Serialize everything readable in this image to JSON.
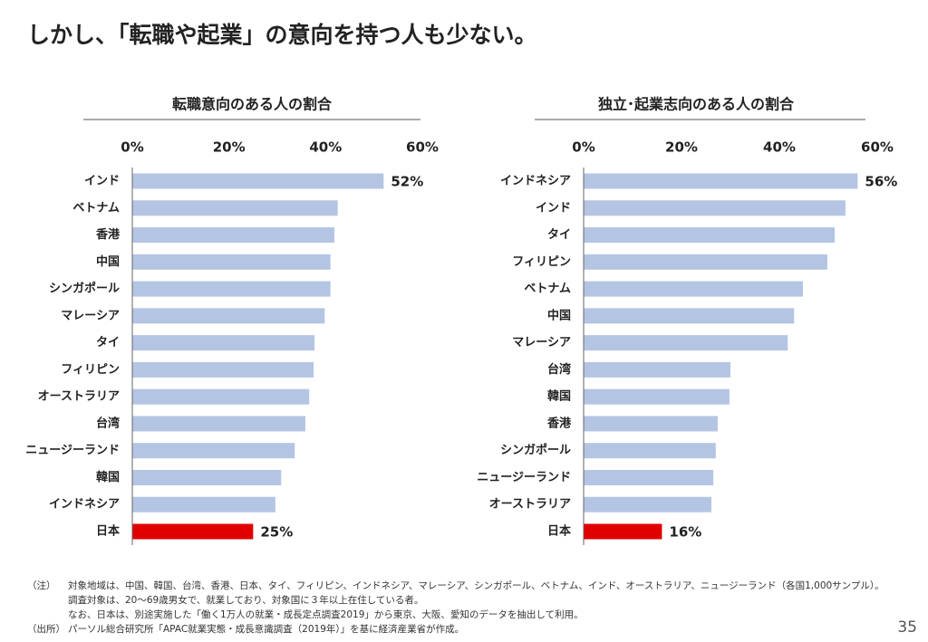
{
  "slide_title": "しかし、「転職や起業」の意向を持つ人も少ない。",
  "chart_data": [
    {
      "type": "bar",
      "orientation": "horizontal",
      "title": "転職意向のある人の割合",
      "categories": [
        "インド",
        "ベトナム",
        "香港",
        "中国",
        "シンガポール",
        "マレーシア",
        "タイ",
        "フィリピン",
        "オーストラリア",
        "台湾",
        "ニュージーランド",
        "韓国",
        "インドネシア",
        "日本"
      ],
      "values": [
        52,
        42.5,
        41.8,
        41,
        41,
        39.8,
        37.7,
        37.5,
        36.6,
        35.8,
        33.6,
        30.8,
        29.6,
        25
      ],
      "value_labels": [
        "52%",
        null,
        null,
        null,
        null,
        null,
        null,
        null,
        null,
        null,
        null,
        null,
        null,
        "25%"
      ],
      "colors": [
        "#b4c5e4",
        "#b4c5e4",
        "#b4c5e4",
        "#b4c5e4",
        "#b4c5e4",
        "#b4c5e4",
        "#b4c5e4",
        "#b4c5e4",
        "#b4c5e4",
        "#b4c5e4",
        "#b4c5e4",
        "#b4c5e4",
        "#b4c5e4",
        "#e00000"
      ],
      "xlim": [
        0,
        60
      ],
      "xticks": [
        {
          "value": 0,
          "label": "0%"
        },
        {
          "value": 20,
          "label": "20%"
        },
        {
          "value": 40,
          "label": "40%"
        },
        {
          "value": 60,
          "label": "60%"
        }
      ],
      "grid": false
    },
    {
      "type": "bar",
      "orientation": "horizontal",
      "title": "独立･起業志向のある人の割合",
      "categories": [
        "インドネシア",
        "インド",
        "タイ",
        "フィリピン",
        "ベトナム",
        "中国",
        "マレーシア",
        "台湾",
        "韓国",
        "香港",
        "シンガポール",
        "ニュージーランド",
        "オーストラリア",
        "日本"
      ],
      "values": [
        56,
        53.5,
        51.3,
        49.8,
        44.8,
        43,
        41.7,
        30,
        29.8,
        27.4,
        27,
        26.5,
        26.1,
        16
      ],
      "value_labels": [
        "56%",
        null,
        null,
        null,
        null,
        null,
        null,
        null,
        null,
        null,
        null,
        null,
        null,
        "16%"
      ],
      "colors": [
        "#b4c5e4",
        "#b4c5e4",
        "#b4c5e4",
        "#b4c5e4",
        "#b4c5e4",
        "#b4c5e4",
        "#b4c5e4",
        "#b4c5e4",
        "#b4c5e4",
        "#b4c5e4",
        "#b4c5e4",
        "#b4c5e4",
        "#b4c5e4",
        "#e00000"
      ],
      "xlim": [
        0,
        60
      ],
      "xticks": [
        {
          "value": 0,
          "label": "0%"
        },
        {
          "value": 20,
          "label": "20%"
        },
        {
          "value": 40,
          "label": "40%"
        },
        {
          "value": 60,
          "label": "60%"
        }
      ],
      "grid": false
    }
  ],
  "notes": {
    "label": "（注）",
    "lines": [
      "対象地域は、中国、韓国、台湾、香港、日本、タイ、フィリピン、インドネシア、マレーシア、シンガポール、ベトナム、インド、オーストラリア、ニュージーランド（各国1,000サンプル）。",
      "調査対象は、20～69歳男女で、就業しており、対象国に３年以上在住している者。",
      "なお、日本は、別途実施した「働く1万人の就業・成長定点調査2019」から東京、大阪、愛知のデータを抽出して利用。"
    ]
  },
  "source": {
    "label": "（出所）",
    "text": "パーソル総合研究所「APAC就業実態・成長意識調査（2019年）」を基に経済産業省が作成。"
  },
  "page_number": "35"
}
